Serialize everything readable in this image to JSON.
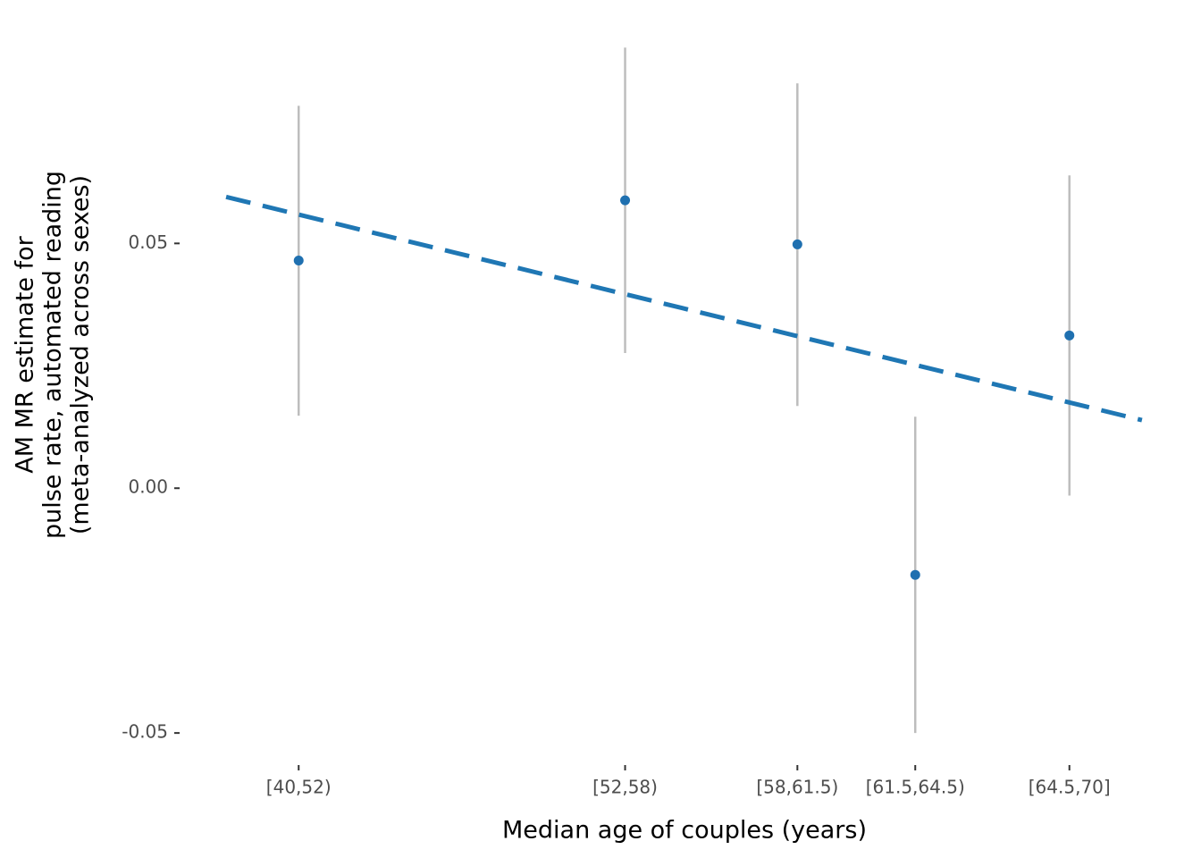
{
  "chart_data": {
    "type": "errorpoint",
    "x_label": "Median age of couples (years)",
    "y_label": [
      "AM MR estimate for",
      "pulse rate, automated reading",
      "(meta-analyzed across sexes)"
    ],
    "x": [
      46,
      55,
      59.75,
      63,
      67.25
    ],
    "series": [
      {
        "color": "#1f70b0",
        "values": [
          0.0465,
          0.0588,
          0.0498,
          -0.0177,
          0.0312
        ],
        "lower": [
          0.0148,
          0.0276,
          0.0168,
          -0.05,
          -0.0015
        ],
        "upper": [
          0.0781,
          0.09,
          0.0827,
          0.0146,
          0.0639
        ]
      }
    ],
    "errorbar_color": "#bdbdbd",
    "trend": {
      "x": [
        44.0,
        69.25
      ],
      "y": [
        0.0595,
        0.0139
      ],
      "color": "#1f77b4",
      "dashed": true
    },
    "xlim": [
      43.9,
      69.4
    ],
    "ylim": [
      -0.056,
      0.0915
    ],
    "xticks": [
      {
        "value": 46,
        "label": "[40,52)"
      },
      {
        "value": 55,
        "label": "[52,58)"
      },
      {
        "value": 59.75,
        "label": "[58,61.5)"
      },
      {
        "value": 63,
        "label": "[61.5,64.5)"
      },
      {
        "value": 67.25,
        "label": "[64.5,70]"
      }
    ],
    "yticks": [
      {
        "value": -0.05,
        "label": "-0.05"
      },
      {
        "value": 0,
        "label": "0.00"
      },
      {
        "value": 0.05,
        "label": "0.05"
      }
    ],
    "grid": false
  }
}
